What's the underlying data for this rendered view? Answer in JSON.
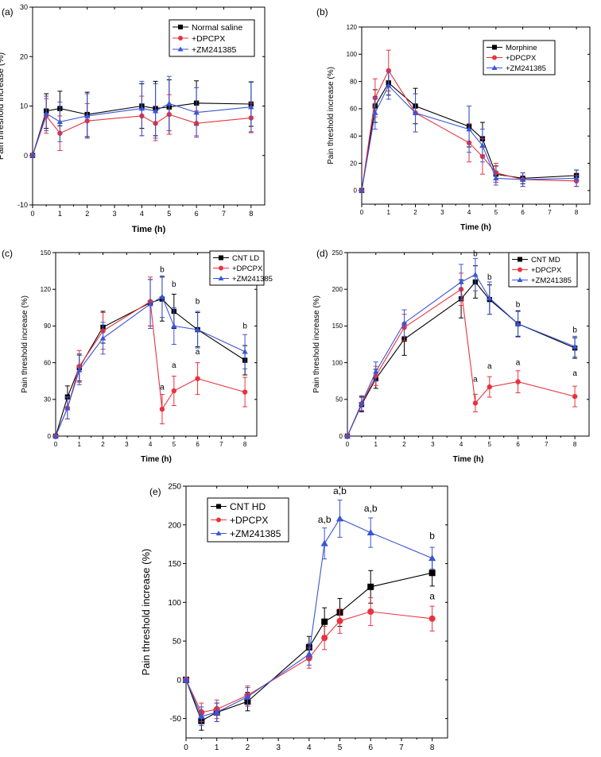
{
  "colors": {
    "black": "#000000",
    "red": "#e8333f",
    "blue": "#3a55d6"
  },
  "chart_data": [
    {
      "id": "a",
      "panel_label": "(a)",
      "type": "line",
      "xlabel": "Time (h)",
      "ylabel": "Pain threshold increase (%)",
      "xlim": [
        0,
        8.5
      ],
      "xticks": [
        0,
        1,
        2,
        3,
        4,
        5,
        6,
        7,
        8
      ],
      "ylim": [
        -10,
        30
      ],
      "yticks": [
        -10,
        0,
        10,
        20,
        30
      ],
      "legend_position": "top-right",
      "x": [
        0,
        0.5,
        1,
        2,
        4,
        4.5,
        5,
        6,
        8
      ],
      "series": [
        {
          "name": "Normal saline",
          "color": "#000000",
          "marker": "square",
          "values": [
            0,
            9,
            9.5,
            8.3,
            10,
            9.5,
            9.8,
            10.6,
            10.4
          ],
          "errors": [
            0,
            3.5,
            3.5,
            4.5,
            4.5,
            5.5,
            5.5,
            4.5,
            4.5
          ]
        },
        {
          "name": "+DPCPX",
          "color": "#e8333f",
          "marker": "circle",
          "values": [
            0,
            8,
            4.5,
            7,
            8,
            6.5,
            8.3,
            6.5,
            7.6
          ],
          "errors": [
            0,
            3.5,
            3.5,
            3.5,
            4,
            3.5,
            4,
            2.5,
            3
          ]
        },
        {
          "name": "+ZM241385",
          "color": "#3a55d6",
          "marker": "triangle",
          "values": [
            0,
            8.5,
            6.8,
            8,
            9.5,
            9,
            10.5,
            8.7,
            9.8
          ],
          "errors": [
            0,
            3.5,
            4,
            4.5,
            5.5,
            5.5,
            5.5,
            5,
            5
          ]
        }
      ],
      "annotations": []
    },
    {
      "id": "b",
      "panel_label": "(b)",
      "type": "line",
      "xlabel": "Time (h)",
      "ylabel": "Pain threshold increase (%)",
      "xlim": [
        0,
        8.5
      ],
      "xticks": [
        0,
        1,
        2,
        3,
        4,
        5,
        6,
        7,
        8
      ],
      "ylim": [
        -10,
        120
      ],
      "yticks": [
        0,
        20,
        40,
        60,
        80,
        100,
        120
      ],
      "legend_position": "top-right",
      "x": [
        0,
        0.5,
        1,
        2,
        4,
        4.5,
        5,
        6,
        8
      ],
      "series": [
        {
          "name": "Morphine",
          "color": "#000000",
          "marker": "square",
          "values": [
            0,
            62,
            79,
            62,
            47,
            38,
            12,
            9,
            11
          ],
          "errors": [
            0,
            12,
            9,
            13,
            15,
            12,
            6,
            4,
            4
          ]
        },
        {
          "name": "+DPCPX",
          "color": "#e8333f",
          "marker": "circle",
          "values": [
            0,
            68,
            88,
            57,
            35,
            25,
            13,
            8,
            7
          ],
          "errors": [
            0,
            14,
            15,
            14,
            14,
            13,
            7,
            5,
            4
          ]
        },
        {
          "name": "+ZM241385",
          "color": "#3a55d6",
          "marker": "triangle",
          "values": [
            0,
            57,
            77,
            57,
            45,
            33,
            9,
            8,
            9
          ],
          "errors": [
            0,
            12,
            10,
            14,
            17,
            12,
            5,
            5,
            6
          ]
        }
      ],
      "annotations": []
    },
    {
      "id": "c",
      "panel_label": "(c)",
      "type": "line",
      "xlabel": "Time (h)",
      "ylabel": "Pain threshold increase (%)",
      "xlim": [
        0,
        8.5
      ],
      "xticks": [
        0,
        1,
        2,
        3,
        4,
        5,
        6,
        7,
        8
      ],
      "ylim": [
        0,
        150
      ],
      "yticks": [
        0,
        30,
        60,
        90,
        120,
        150
      ],
      "legend_position": "top-right",
      "x": [
        0,
        0.5,
        1,
        2,
        4,
        4.5,
        5,
        6,
        8
      ],
      "series": [
        {
          "name": "CNT LD",
          "color": "#000000",
          "marker": "square",
          "values": [
            0,
            32,
            56,
            89,
            109,
            112,
            102,
            87,
            62
          ],
          "errors": [
            0,
            9,
            11,
            13,
            19,
            18,
            14,
            14,
            12
          ]
        },
        {
          "name": "+DPCPX",
          "color": "#e8333f",
          "marker": "circle",
          "values": [
            0,
            23,
            57,
            86,
            110,
            22,
            37,
            47,
            36
          ],
          "errors": [
            0,
            9,
            13,
            15,
            20,
            12,
            12,
            13,
            12
          ]
        },
        {
          "name": "+ZM241385",
          "color": "#3a55d6",
          "marker": "triangle",
          "values": [
            0,
            23,
            54,
            80,
            108,
            114,
            90,
            87,
            69
          ],
          "errors": [
            0,
            9,
            12,
            13,
            20,
            17,
            15,
            15,
            14
          ]
        }
      ],
      "annotations": [
        {
          "x": 4.5,
          "y": 134,
          "text": "b"
        },
        {
          "x": 5,
          "y": 122,
          "text": "b"
        },
        {
          "x": 6,
          "y": 108,
          "text": "b"
        },
        {
          "x": 8,
          "y": 88,
          "text": "b"
        },
        {
          "x": 4.5,
          "y": 38,
          "text": "a"
        },
        {
          "x": 5,
          "y": 56,
          "text": "a"
        },
        {
          "x": 6,
          "y": 67,
          "text": "a"
        },
        {
          "x": 8,
          "y": 60,
          "text": "a"
        }
      ]
    },
    {
      "id": "d",
      "panel_label": "(d)",
      "type": "line",
      "xlabel": "Time (h)",
      "ylabel": "Pain threshold increase (%)",
      "xlim": [
        0,
        8.5
      ],
      "xticks": [
        0,
        1,
        2,
        3,
        4,
        5,
        6,
        7,
        8
      ],
      "ylim": [
        0,
        250
      ],
      "yticks": [
        0,
        50,
        100,
        150,
        200,
        250
      ],
      "legend_position": "top-right",
      "x": [
        0,
        0.5,
        1,
        2,
        4,
        4.5,
        5,
        6,
        8
      ],
      "series": [
        {
          "name": "CNT MD",
          "color": "#000000",
          "marker": "square",
          "values": [
            0,
            43,
            78,
            132,
            187,
            210,
            186,
            153,
            120
          ],
          "errors": [
            0,
            10,
            13,
            22,
            26,
            22,
            20,
            17,
            14
          ]
        },
        {
          "name": "+DPCPX",
          "color": "#e8333f",
          "marker": "circle",
          "values": [
            0,
            44,
            82,
            148,
            200,
            45,
            67,
            74,
            54
          ],
          "errors": [
            0,
            10,
            13,
            18,
            22,
            12,
            14,
            15,
            14
          ]
        },
        {
          "name": "+ZM241385",
          "color": "#3a55d6",
          "marker": "triangle",
          "values": [
            0,
            45,
            88,
            154,
            210,
            220,
            188,
            153,
            122
          ],
          "errors": [
            0,
            10,
            13,
            18,
            24,
            22,
            22,
            18,
            14
          ]
        }
      ],
      "annotations": [
        {
          "x": 4.5,
          "y": 245,
          "text": "b"
        },
        {
          "x": 5,
          "y": 213,
          "text": "b"
        },
        {
          "x": 6,
          "y": 176,
          "text": "b"
        },
        {
          "x": 8,
          "y": 141,
          "text": "b"
        },
        {
          "x": 4.5,
          "y": 74,
          "text": "a"
        },
        {
          "x": 5,
          "y": 92,
          "text": "a"
        },
        {
          "x": 6,
          "y": 97,
          "text": "a"
        },
        {
          "x": 8,
          "y": 82,
          "text": "a"
        }
      ]
    },
    {
      "id": "e",
      "panel_label": "(e)",
      "type": "line",
      "xlabel": "Time (h)",
      "ylabel": "Pain threshold increase (%)",
      "xlim": [
        0,
        8.5
      ],
      "xticks": [
        0,
        1,
        2,
        3,
        4,
        5,
        6,
        7,
        8
      ],
      "ylim": [
        -75,
        250
      ],
      "yticks": [
        -50,
        0,
        50,
        100,
        150,
        200,
        250
      ],
      "legend_position": "top-left",
      "x": [
        0,
        0.5,
        1,
        2,
        4,
        4.5,
        5,
        6,
        8
      ],
      "series": [
        {
          "name": "CNT HD",
          "color": "#000000",
          "marker": "square",
          "values": [
            0,
            -53,
            -42,
            -28,
            42,
            75,
            87,
            120,
            138
          ],
          "errors": [
            0,
            12,
            12,
            12,
            14,
            18,
            18,
            21,
            17
          ]
        },
        {
          "name": "+DPCPX",
          "color": "#e8333f",
          "marker": "circle",
          "values": [
            0,
            -42,
            -38,
            -20,
            28,
            54,
            76,
            88,
            79
          ],
          "errors": [
            0,
            12,
            12,
            12,
            13,
            15,
            16,
            18,
            16
          ]
        },
        {
          "name": "+ZM241385",
          "color": "#3a55d6",
          "marker": "triangle",
          "values": [
            0,
            -47,
            -42,
            -22,
            33,
            176,
            208,
            190,
            157
          ],
          "errors": [
            0,
            12,
            12,
            12,
            14,
            20,
            24,
            19,
            14
          ]
        }
      ],
      "annotations": [
        {
          "x": 4.5,
          "y": 203,
          "text": "a,b"
        },
        {
          "x": 5,
          "y": 240,
          "text": "a,b"
        },
        {
          "x": 6,
          "y": 217,
          "text": "a,b"
        },
        {
          "x": 8,
          "y": 182,
          "text": "b"
        },
        {
          "x": 8,
          "y": 104,
          "text": "a"
        }
      ]
    }
  ]
}
